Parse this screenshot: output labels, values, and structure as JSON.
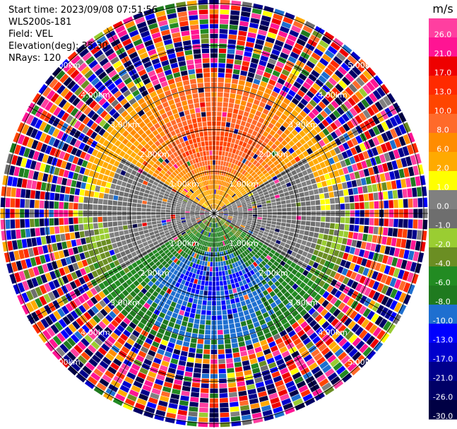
{
  "header": {
    "start_time": "Start time: 2023/09/08 07:51:56",
    "instrument": "WLS200s-181",
    "field": "Field: VEL",
    "elevation": "Elevation(deg): 35.30",
    "nrays": "NRays: 120"
  },
  "chart_data": {
    "type": "heatmap",
    "subtype": "ppi-polar",
    "field": "VEL",
    "units": "m/s",
    "nrays": 120,
    "range_rings_km": [
      1.0,
      2.0,
      3.0,
      4.0,
      5.0
    ],
    "ring_labels": [
      "1.00km",
      "2.00km",
      "3.00km",
      "4.00km",
      "5.00km"
    ],
    "max_range_km": 5.1,
    "radial_lines_deg": [
      0,
      30,
      60,
      90,
      120,
      150,
      180,
      210,
      240,
      270,
      300,
      330
    ],
    "colorbar": {
      "unit_label": "m/s",
      "tick_labels": [
        "26.0",
        "21.0",
        "17.0",
        "13.0",
        "10.0",
        "8.0",
        "6.0",
        "2.0",
        "1.0",
        "0.0",
        "-1.0",
        "-2.0",
        "-4.0",
        "-6.0",
        "-8.0",
        "-10.0",
        "-13.0",
        "-17.0",
        "-21.0",
        "-26.0",
        "-30.0"
      ],
      "bins": [
        {
          "min": 26,
          "max": 30,
          "color": "#ff3fa0"
        },
        {
          "min": 21,
          "max": 26,
          "color": "#ff1493"
        },
        {
          "min": 17,
          "max": 21,
          "color": "#ee0000"
        },
        {
          "min": 13,
          "max": 17,
          "color": "#ff2a00"
        },
        {
          "min": 10,
          "max": 13,
          "color": "#ff4500"
        },
        {
          "min": 8,
          "max": 10,
          "color": "#ff6a2a"
        },
        {
          "min": 6,
          "max": 8,
          "color": "#ff8c00"
        },
        {
          "min": 2,
          "max": 6,
          "color": "#ffaa00"
        },
        {
          "min": 1,
          "max": 2,
          "color": "#ffff00"
        },
        {
          "min": 0,
          "max": 1,
          "color": "#808080"
        },
        {
          "min": -1,
          "max": 0,
          "color": "#6e6e6e"
        },
        {
          "min": -2,
          "max": -1,
          "color": "#9acd32"
        },
        {
          "min": -4,
          "max": -2,
          "color": "#6b8e23"
        },
        {
          "min": -6,
          "max": -4,
          "color": "#228b22"
        },
        {
          "min": -8,
          "max": -6,
          "color": "#1f7a1f"
        },
        {
          "min": -10,
          "max": -8,
          "color": "#1e6fd0"
        },
        {
          "min": -13,
          "max": -10,
          "color": "#0000ff"
        },
        {
          "min": -17,
          "max": -13,
          "color": "#0000cd"
        },
        {
          "min": -21,
          "max": -17,
          "color": "#00008b"
        },
        {
          "min": -26,
          "max": -21,
          "color": "#000066"
        },
        {
          "min": -30,
          "max": -26,
          "color": "#000044"
        }
      ]
    },
    "pattern": {
      "description_values": "near-range velocities: positive (yellow/orange) toward north, negative (green/blue) toward south, near zero (gray) along east-west; beyond ~3.5 km values are noisy across full scale",
      "coherent_range_km": 3.3,
      "peak_north_mps": 13,
      "peak_south_mps": -10,
      "mean_wind_from_deg": 180
    }
  }
}
